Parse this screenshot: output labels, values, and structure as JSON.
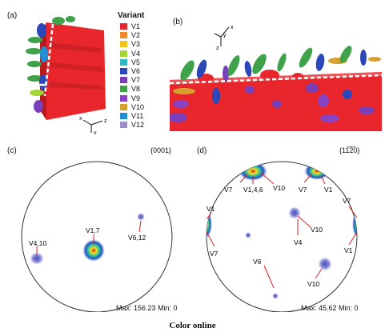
{
  "panels": {
    "a": {
      "tag": "(a)"
    },
    "b": {
      "tag": "(b)"
    },
    "c": {
      "tag": "(c)",
      "title": "{0001}",
      "stats": "Max: 156.23  Min: 0",
      "labels": [
        "V4,10",
        "V1,7",
        "V6,12"
      ]
    },
    "d": {
      "tag": "(d)",
      "title": "{11̅2̅0}",
      "stats": "Max: 45.62  Min: 0",
      "labels": [
        "V7",
        "V1,4,6",
        "V10",
        "V7",
        "V1",
        "V1",
        "V7",
        "V10",
        "V4",
        "V7",
        "V1",
        "V6",
        "V10"
      ]
    }
  },
  "legend": {
    "title": "Variant",
    "items": [
      {
        "label": "V1",
        "color": "#e8262b"
      },
      {
        "label": "V2",
        "color": "#f08a2c"
      },
      {
        "label": "V3",
        "color": "#f2c619"
      },
      {
        "label": "V4",
        "color": "#a6d23a"
      },
      {
        "label": "V5",
        "color": "#30b8c2"
      },
      {
        "label": "V6",
        "color": "#2b47b8"
      },
      {
        "label": "V7",
        "color": "#7a3fb8"
      },
      {
        "label": "V8",
        "color": "#3fa24a"
      },
      {
        "label": "V9",
        "color": "#8a43c4"
      },
      {
        "label": "V10",
        "color": "#d8a030"
      },
      {
        "label": "V11",
        "color": "#1f8fd6"
      },
      {
        "label": "V12",
        "color": "#9c8fcc"
      }
    ]
  },
  "axes_a": {
    "x": "x",
    "y": "y",
    "z": "z"
  },
  "axes_b": {
    "x": "x",
    "y": "y",
    "z": "z"
  },
  "caption": "Color online"
}
